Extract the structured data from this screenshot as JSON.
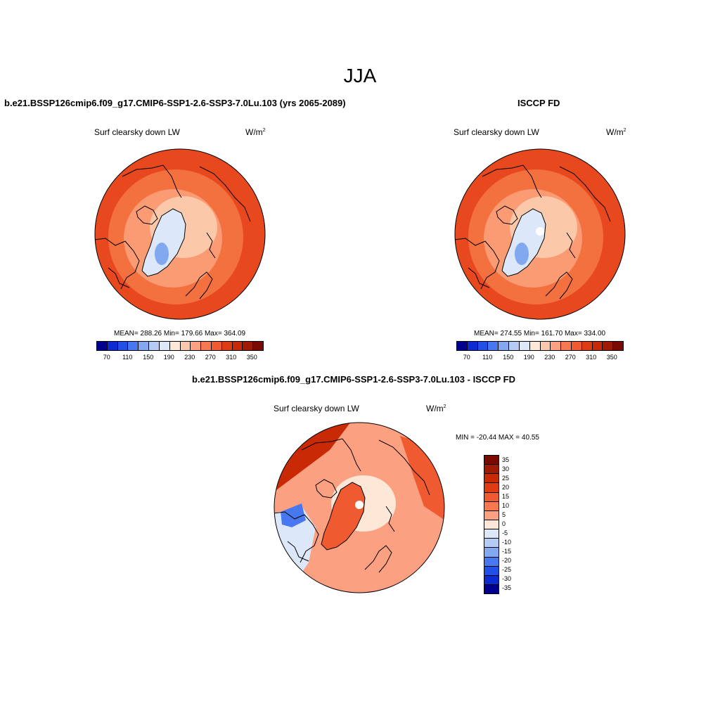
{
  "main_title": "JJA",
  "units_base": "W/m",
  "units_exp": "2",
  "panels": [
    {
      "title": "b.e21.BSSP126cmip6.f09_g17.CMIP6-SSP1-2.6-SSP3-7.0Lu.103 (yrs 2065-2089)",
      "variable": "Surf clearsky down LW",
      "stats": "MEAN= 288.26  Min= 179.66  Max= 364.09"
    },
    {
      "title": "ISCCP FD",
      "variable": "Surf clearsky down LW",
      "stats": "MEAN= 274.55  Min= 161.70  Max= 334.00"
    },
    {
      "title": "b.e21.BSSP126cmip6.f09_g17.CMIP6-SSP1-2.6-SSP3-7.0Lu.103 - ISCCP FD",
      "variable": "Surf clearsky down LW",
      "stats": "MIN = -20.44 MAX =  40.55"
    }
  ],
  "colorbar_abs": {
    "colors": [
      "#00008c",
      "#0a2ad2",
      "#2050e6",
      "#4878f0",
      "#82a8f0",
      "#b4ccf5",
      "#dce8fa",
      "#fde8d8",
      "#fcc8aa",
      "#fba080",
      "#f87850",
      "#f05a30",
      "#e03c14",
      "#c82a06",
      "#a01a04",
      "#7a0a00"
    ],
    "tick_labels": [
      "70",
      "110",
      "150",
      "190",
      "230",
      "270",
      "310",
      "350"
    ]
  },
  "colorbar_diff": {
    "colors": [
      "#7a0a00",
      "#a01a04",
      "#c82a06",
      "#e03c14",
      "#f05a30",
      "#f87850",
      "#fba080",
      "#fde8d8",
      "#dce8fa",
      "#b4ccf5",
      "#82a8f0",
      "#4878f0",
      "#2050e6",
      "#0a2ad2",
      "#00008c"
    ],
    "tick_labels": [
      "35",
      "30",
      "25",
      "20",
      "15",
      "10",
      "5",
      "0",
      "-5",
      "-10",
      "-15",
      "-20",
      "-25",
      "-30",
      "-35"
    ]
  },
  "map_colors": {
    "outer": "#e8481e",
    "mid": "#f3703f",
    "inner": "#fb9b73",
    "arctic": "#fcc8aa",
    "greenland": "#dce8fa",
    "greenland_core": "#82a8f0",
    "diff_base": "#fba080",
    "diff_warm": "#f05a30",
    "diff_hot": "#c82a06",
    "diff_arctic": "#fde8d8",
    "diff_cool": "#dce8fa",
    "diff_blue": "#4878f0"
  }
}
